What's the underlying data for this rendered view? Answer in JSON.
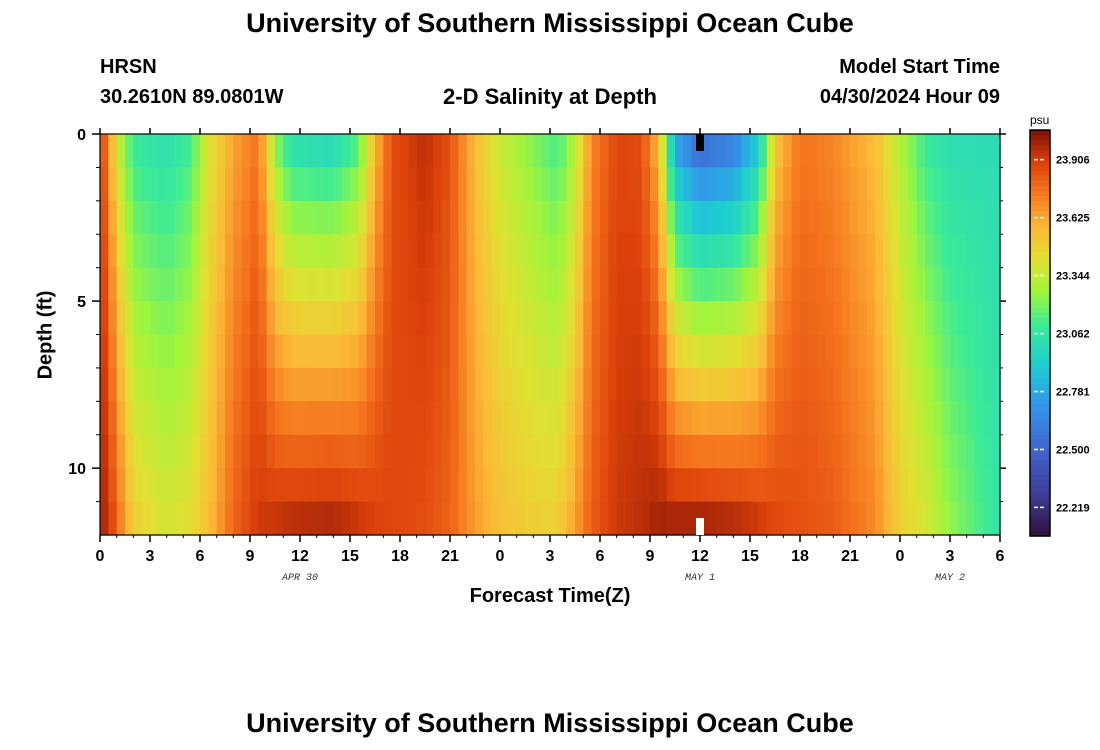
{
  "header": {
    "title_top": "University of Southern Mississippi Ocean Cube",
    "title_bottom": "University of Southern Mississippi Ocean Cube",
    "station": "HRSN",
    "coords": "30.2610N  89.0801W",
    "chart_title": "2-D Salinity at Depth",
    "model_start_label": "Model Start Time",
    "model_start_value": "04/30/2024 Hour 09"
  },
  "chart_data": {
    "type": "heatmap",
    "title": "2-D Salinity at Depth",
    "xlabel": "Forecast Time(Z)",
    "ylabel": "Depth (ft)",
    "x_hours_range": [
      0,
      54
    ],
    "x_tick_hours": [
      0,
      3,
      6,
      9,
      12,
      15,
      18,
      21,
      24,
      27,
      30,
      33,
      36,
      39,
      42,
      45,
      48,
      51,
      54
    ],
    "x_tick_labels": [
      "0",
      "3",
      "6",
      "9",
      "12",
      "15",
      "18",
      "21",
      "0",
      "3",
      "6",
      "9",
      "12",
      "15",
      "18",
      "21",
      "0",
      "3",
      "6"
    ],
    "date_labels": [
      {
        "text": "APR 30",
        "hour": 12
      },
      {
        "text": "MAY 1",
        "hour": 36
      },
      {
        "text": "MAY 2",
        "hour": 51
      }
    ],
    "y_range_ft": [
      0,
      12
    ],
    "y_tick_values": [
      0,
      5,
      10
    ],
    "y_tick_labels": [
      "0",
      "5",
      "10"
    ],
    "current_time_marker_hour": 36,
    "colorbar": {
      "unit": "psu",
      "min": 22.08,
      "max": 24.05,
      "tick_values": [
        23.906,
        23.625,
        23.344,
        23.062,
        22.781,
        22.5,
        22.219
      ],
      "tick_labels": [
        "23.906",
        "23.625",
        "23.344",
        "23.062",
        "22.781",
        "22.500",
        "22.219"
      ]
    },
    "profile_keyframes": [
      {
        "hour": 0,
        "surface": 23.9,
        "bottom": 23.98
      },
      {
        "hour": 0.5,
        "surface": 23.7,
        "bottom": 23.95
      },
      {
        "hour": 1.0,
        "surface": 23.35,
        "bottom": 23.8
      },
      {
        "hour": 2.0,
        "surface": 23.06,
        "bottom": 23.5
      },
      {
        "hour": 4.0,
        "surface": 23.0,
        "bottom": 23.4
      },
      {
        "hour": 5.5,
        "surface": 23.1,
        "bottom": 23.45
      },
      {
        "hour": 6.5,
        "surface": 23.4,
        "bottom": 23.55
      },
      {
        "hour": 8.0,
        "surface": 23.62,
        "bottom": 23.8
      },
      {
        "hour": 9.5,
        "surface": 23.75,
        "bottom": 23.92
      },
      {
        "hour": 10.5,
        "surface": 23.2,
        "bottom": 23.95
      },
      {
        "hour": 11.5,
        "surface": 22.97,
        "bottom": 23.98
      },
      {
        "hour": 14.0,
        "surface": 22.93,
        "bottom": 24.0
      },
      {
        "hour": 15.5,
        "surface": 23.1,
        "bottom": 23.95
      },
      {
        "hour": 16.5,
        "surface": 23.55,
        "bottom": 23.9
      },
      {
        "hour": 17.5,
        "surface": 23.85,
        "bottom": 23.88
      },
      {
        "hour": 19.5,
        "surface": 23.95,
        "bottom": 23.85
      },
      {
        "hour": 21.0,
        "surface": 23.85,
        "bottom": 23.8
      },
      {
        "hour": 22.5,
        "surface": 23.55,
        "bottom": 23.65
      },
      {
        "hour": 24.0,
        "surface": 23.35,
        "bottom": 23.55
      },
      {
        "hour": 26.0,
        "surface": 23.2,
        "bottom": 23.5
      },
      {
        "hour": 27.5,
        "surface": 23.1,
        "bottom": 23.5
      },
      {
        "hour": 28.5,
        "surface": 23.3,
        "bottom": 23.65
      },
      {
        "hour": 29.5,
        "surface": 23.7,
        "bottom": 23.82
      },
      {
        "hour": 31.0,
        "surface": 23.88,
        "bottom": 23.92
      },
      {
        "hour": 32.5,
        "surface": 23.85,
        "bottom": 23.95
      },
      {
        "hour": 33.5,
        "surface": 23.55,
        "bottom": 24.0
      },
      {
        "hour": 34.5,
        "surface": 22.7,
        "bottom": 24.02
      },
      {
        "hour": 36.0,
        "surface": 22.45,
        "bottom": 24.03
      },
      {
        "hour": 38.0,
        "surface": 22.55,
        "bottom": 24.0
      },
      {
        "hour": 39.5,
        "surface": 22.85,
        "bottom": 23.95
      },
      {
        "hour": 40.5,
        "surface": 23.5,
        "bottom": 23.88
      },
      {
        "hour": 42.0,
        "surface": 23.75,
        "bottom": 23.85
      },
      {
        "hour": 44.0,
        "surface": 23.7,
        "bottom": 23.82
      },
      {
        "hour": 46.5,
        "surface": 23.55,
        "bottom": 23.7
      },
      {
        "hour": 48.0,
        "surface": 23.3,
        "bottom": 23.5
      },
      {
        "hour": 49.5,
        "surface": 23.08,
        "bottom": 23.4
      },
      {
        "hour": 51.0,
        "surface": 23.0,
        "bottom": 23.25
      },
      {
        "hour": 54.0,
        "surface": 23.0,
        "bottom": 23.05
      }
    ]
  }
}
